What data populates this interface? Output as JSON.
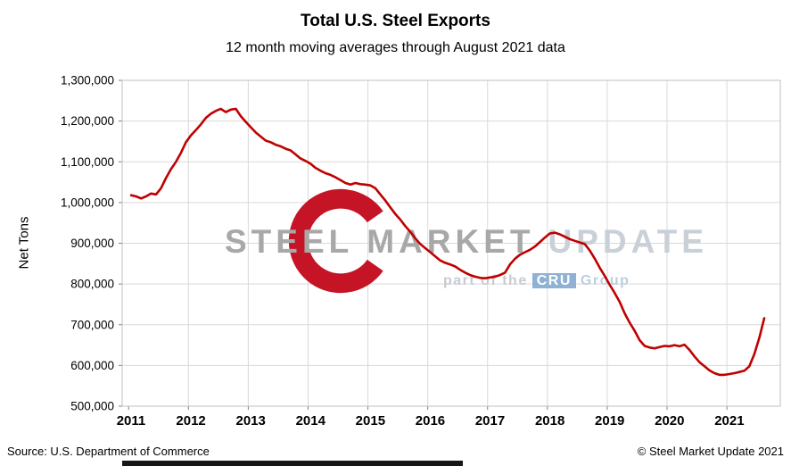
{
  "header": {
    "title": "Total U.S. Steel Exports",
    "subtitle": "12 month moving averages through August 2021 data"
  },
  "footer": {
    "source": "Source: U.S. Department of Commerce",
    "copyright": "© Steel Market Update 2021"
  },
  "watermark": {
    "steel": "STEEL",
    "market": "MARKET",
    "update": "UPDATE",
    "tagline_prefix": "part of the",
    "cru": "CRU",
    "group": "Group"
  },
  "colors": {
    "line": "#C00000",
    "grid": "#D9D9D9",
    "border": "#BFBFBF",
    "tick": "#7F7F7F",
    "axis_text": "#000000",
    "logo_red": "#C41425",
    "cru_blue": "#8FB2D4"
  },
  "chart_data": {
    "type": "line",
    "title": "Total U.S. Steel Exports",
    "subtitle": "12 month moving averages through August 2021 data",
    "xlabel": "",
    "ylabel": "Net Tons",
    "ylim": [
      500000,
      1300000
    ],
    "ytick_step": 100000,
    "grid": true,
    "legend": "none",
    "x_years": [
      2011,
      2012,
      2013,
      2014,
      2015,
      2016,
      2017,
      2018,
      2019,
      2020,
      2021
    ],
    "start_month": "2011-01",
    "end_month": "2021-08",
    "series": [
      {
        "name": "Total U.S. Steel Exports (12-month moving average, net tons)",
        "values": [
          1018000,
          1015000,
          1010000,
          1015000,
          1022000,
          1020000,
          1035000,
          1060000,
          1082000,
          1100000,
          1122000,
          1148000,
          1165000,
          1178000,
          1192000,
          1208000,
          1218000,
          1225000,
          1230000,
          1222000,
          1228000,
          1230000,
          1212000,
          1198000,
          1185000,
          1172000,
          1162000,
          1152000,
          1148000,
          1142000,
          1138000,
          1132000,
          1128000,
          1118000,
          1108000,
          1102000,
          1095000,
          1085000,
          1078000,
          1072000,
          1068000,
          1062000,
          1055000,
          1048000,
          1044000,
          1048000,
          1045000,
          1044000,
          1042000,
          1035000,
          1020000,
          1005000,
          988000,
          972000,
          958000,
          942000,
          928000,
          912000,
          898000,
          888000,
          878000,
          868000,
          858000,
          852000,
          848000,
          843000,
          835000,
          828000,
          822000,
          818000,
          815000,
          814000,
          816000,
          818000,
          822000,
          828000,
          848000,
          862000,
          872000,
          878000,
          884000,
          892000,
          903000,
          914000,
          924000,
          926000,
          922000,
          916000,
          910000,
          906000,
          902000,
          898000,
          882000,
          862000,
          840000,
          820000,
          798000,
          778000,
          756000,
          728000,
          705000,
          685000,
          662000,
          648000,
          644000,
          642000,
          645000,
          648000,
          647000,
          650000,
          647000,
          651000,
          638000,
          622000,
          608000,
          598000,
          588000,
          581000,
          577000,
          577000,
          579000,
          581000,
          584000,
          587000,
          598000,
          628000,
          668000,
          716000
        ]
      }
    ]
  }
}
